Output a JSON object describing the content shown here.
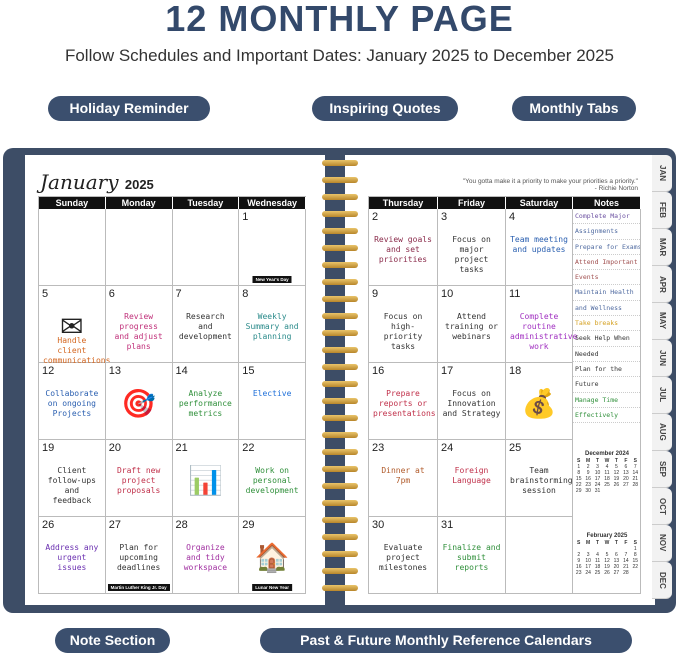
{
  "header": {
    "title": "12 MONTHLY PAGE",
    "subtitle": "Follow Schedules and Important Dates: January 2025 to December 2025"
  },
  "callouts": {
    "holiday": "Holiday Reminder",
    "quotes": "Inspiring Quotes",
    "tabs": "Monthly Tabs",
    "notes": "Note Section",
    "reference": "Past & Future Monthly Reference Calendars"
  },
  "left": {
    "month": "January",
    "year": "2025",
    "days": [
      "Sunday",
      "Monday",
      "Tuesday",
      "Wednesday"
    ],
    "cells": [
      {
        "n": "",
        "t": ""
      },
      {
        "n": "",
        "t": ""
      },
      {
        "n": "",
        "t": ""
      },
      {
        "n": "1",
        "t": "",
        "h": "New Year's Day"
      },
      {
        "n": "5",
        "t": "Handle client communications",
        "i": "✉",
        "c": "#d4661f"
      },
      {
        "n": "6",
        "t": "Review progress and adjust plans",
        "c": "#c0307a"
      },
      {
        "n": "7",
        "t": "Research and development",
        "c": "#333"
      },
      {
        "n": "8",
        "t": "Weekly Summary and planning",
        "c": "#2a8a8a"
      },
      {
        "n": "12",
        "t": "Collaborate on ongoing Projects",
        "c": "#2a5fb0"
      },
      {
        "n": "13",
        "t": "",
        "i": "🎯"
      },
      {
        "n": "14",
        "t": "Analyze performance metrics",
        "c": "#2f8f3a"
      },
      {
        "n": "15",
        "t": "Elective",
        "c": "#1e6fd9"
      },
      {
        "n": "19",
        "t": "Client follow-ups and feedback",
        "c": "#333"
      },
      {
        "n": "20",
        "t": "Draft new project proposals",
        "c": "#c0304a"
      },
      {
        "n": "21",
        "t": "",
        "i": "📊"
      },
      {
        "n": "22",
        "t": "Work on personal development",
        "c": "#2f8f3a"
      },
      {
        "n": "26",
        "t": "Address any urgent issues",
        "c": "#6a2fb0"
      },
      {
        "n": "27",
        "t": "Plan for upcoming deadlines",
        "c": "#333",
        "h": "Martin Luther King Jr. Day"
      },
      {
        "n": "28",
        "t": "Organize and tidy workspace",
        "c": "#a02fa0"
      },
      {
        "n": "29",
        "t": "",
        "i": "🏠",
        "h": "Lunar New Year"
      }
    ]
  },
  "right": {
    "quote": "\"You gotta make it a priority to make your priorities a priority.\"",
    "quote_author": "- Richie Norton",
    "days": [
      "Thursday",
      "Friday",
      "Saturday",
      "Notes"
    ],
    "cells": [
      {
        "n": "2",
        "t": "Review goals and set priorities",
        "c": "#8a2a4a"
      },
      {
        "n": "3",
        "t": "Focus on major project tasks",
        "c": "#333"
      },
      {
        "n": "4",
        "t": "Team meeting and updates",
        "c": "#2a5fb0"
      },
      {
        "n": "9",
        "t": "Focus on high-priority tasks",
        "c": "#333"
      },
      {
        "n": "10",
        "t": "Attend training or webinars",
        "c": "#333"
      },
      {
        "n": "11",
        "t": "Complete routine administrative work",
        "c": "#a02fc0"
      },
      {
        "n": "16",
        "t": "Prepare reports or presentations",
        "c": "#c0304a"
      },
      {
        "n": "17",
        "t": "Focus on Innovation and Strategy",
        "c": "#333"
      },
      {
        "n": "18",
        "t": "",
        "i": "💰"
      },
      {
        "n": "23",
        "t": "Dinner at 7pm",
        "c": "#b05a2a"
      },
      {
        "n": "24",
        "t": "Foreign Language",
        "c": "#c0304a"
      },
      {
        "n": "25",
        "t": "Team brainstorming session",
        "c": "#333"
      },
      {
        "n": "30",
        "t": "Evaluate project milestones",
        "c": "#333"
      },
      {
        "n": "31",
        "t": "Finalize and submit reports",
        "c": "#2f8f3a"
      },
      {
        "n": "",
        "t": ""
      }
    ],
    "notes": [
      "Complete Major",
      "Assignments",
      "Prepare for Exams",
      "Attend Important",
      "Events",
      "Maintain Health",
      "and Wellness",
      "Take breaks",
      "Seek Help When",
      "Needed",
      "Plan for the",
      "Future",
      "Manage Time",
      "Effectively"
    ]
  },
  "mini": [
    {
      "title": "December 2024",
      "head": [
        "S",
        "M",
        "T",
        "W",
        "T",
        "F",
        "S"
      ],
      "rows": [
        [
          "1",
          "2",
          "3",
          "4",
          "5",
          "6",
          "7"
        ],
        [
          "8",
          "9",
          "10",
          "11",
          "12",
          "13",
          "14"
        ],
        [
          "15",
          "16",
          "17",
          "18",
          "19",
          "20",
          "21"
        ],
        [
          "22",
          "23",
          "24",
          "25",
          "26",
          "27",
          "28"
        ],
        [
          "29",
          "30",
          "31",
          "",
          "",
          "",
          ""
        ]
      ]
    },
    {
      "title": "February 2025",
      "head": [
        "S",
        "M",
        "T",
        "W",
        "T",
        "F",
        "S"
      ],
      "rows": [
        [
          "",
          "",
          "",
          "",
          "",
          "",
          "1"
        ],
        [
          "2",
          "3",
          "4",
          "5",
          "6",
          "7",
          "8"
        ],
        [
          "9",
          "10",
          "11",
          "12",
          "13",
          "14",
          "15"
        ],
        [
          "16",
          "17",
          "18",
          "19",
          "20",
          "21",
          "22"
        ],
        [
          "23",
          "24",
          "25",
          "26",
          "27",
          "28",
          ""
        ]
      ]
    }
  ],
  "tabs": [
    "JAN",
    "FEB",
    "MAR",
    "APR",
    "MAY",
    "JUN",
    "JUL",
    "AUG",
    "SEP",
    "OCT",
    "NOV",
    "DEC"
  ]
}
